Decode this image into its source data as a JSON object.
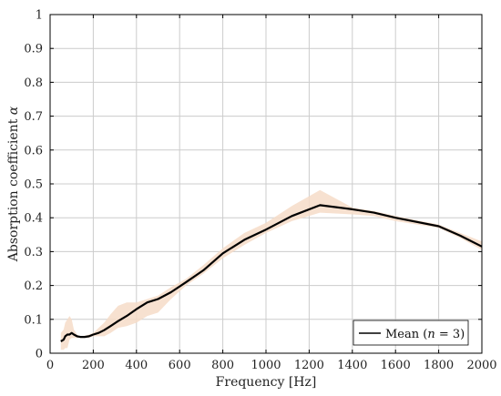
{
  "chart_data": {
    "type": "line",
    "xlabel": "Frequency [Hz]",
    "ylabel_prefix": "Absorption coefficient ",
    "ylabel_symbol": "α",
    "xlim": [
      0,
      2000
    ],
    "ylim": [
      0,
      1
    ],
    "xticks": [
      0,
      200,
      400,
      600,
      800,
      1000,
      1200,
      1400,
      1600,
      1800,
      2000
    ],
    "yticks": [
      0,
      0.1,
      0.2,
      0.3,
      0.4,
      0.5,
      0.6,
      0.7,
      0.8,
      0.9,
      1
    ],
    "grid": true,
    "legend_position": "bottom-right",
    "legend_label_prefix": "Mean (",
    "legend_label_var": "n",
    "legend_label_suffix": " = 3)",
    "line_color": "#000000",
    "band_color": "#f6dcc8",
    "series": [
      {
        "name": "Mean (n = 3)",
        "x": [
          50,
          63,
          70,
          80,
          90,
          100,
          110,
          125,
          140,
          160,
          180,
          200,
          225,
          250,
          280,
          315,
          355,
          400,
          450,
          500,
          560,
          630,
          710,
          800,
          900,
          1000,
          1120,
          1250,
          1400,
          1500,
          1600,
          1800,
          1900,
          2000
        ],
        "y": [
          0.035,
          0.04,
          0.05,
          0.055,
          0.055,
          0.06,
          0.055,
          0.05,
          0.048,
          0.048,
          0.05,
          0.055,
          0.06,
          0.068,
          0.08,
          0.095,
          0.11,
          0.13,
          0.15,
          0.16,
          0.18,
          0.21,
          0.245,
          0.295,
          0.335,
          0.365,
          0.405,
          0.437,
          0.425,
          0.415,
          0.4,
          0.375,
          0.347,
          0.315
        ],
        "lower": [
          0.01,
          0.01,
          0.015,
          0.015,
          0.04,
          0.045,
          0.045,
          0.045,
          0.045,
          0.045,
          0.045,
          0.05,
          0.05,
          0.05,
          0.06,
          0.075,
          0.08,
          0.09,
          0.11,
          0.12,
          0.16,
          0.2,
          0.235,
          0.28,
          0.32,
          0.355,
          0.39,
          0.415,
          0.41,
          0.405,
          0.39,
          0.37,
          0.34,
          0.305
        ],
        "upper": [
          0.06,
          0.07,
          0.09,
          0.1,
          0.11,
          0.1,
          0.07,
          0.055,
          0.05,
          0.052,
          0.055,
          0.06,
          0.075,
          0.09,
          0.115,
          0.14,
          0.15,
          0.15,
          0.16,
          0.17,
          0.195,
          0.22,
          0.26,
          0.31,
          0.355,
          0.385,
          0.435,
          0.482,
          0.43,
          0.42,
          0.405,
          0.38,
          0.355,
          0.33
        ]
      }
    ]
  }
}
